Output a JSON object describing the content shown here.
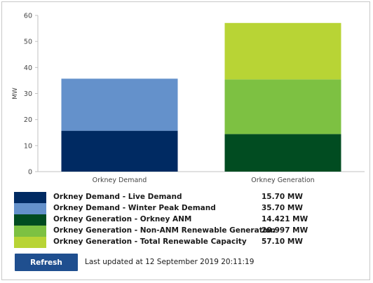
{
  "chart_data": {
    "type": "bar",
    "stacked": true,
    "categories": [
      "Orkney Demand",
      "Orkney Generation"
    ],
    "ylabel": "MW",
    "ylim": [
      0,
      60
    ],
    "yticks": [
      0,
      10,
      20,
      30,
      40,
      50,
      60
    ],
    "grid": false,
    "series": [
      {
        "name": "Orkney Demand - Live Demand",
        "category": "Orkney Demand",
        "bottom": 0,
        "top": 15.7,
        "color": "#002a62"
      },
      {
        "name": "Orkney Demand - Winter Peak Demand",
        "category": "Orkney Demand",
        "bottom": 15.7,
        "top": 35.7,
        "color": "#6491cb"
      },
      {
        "name": "Orkney Generation - Orkney ANM",
        "category": "Orkney Generation",
        "bottom": 0,
        "top": 14.421,
        "color": "#014c21"
      },
      {
        "name": "Orkney Generation - Non-ANM Renewable Generation",
        "category": "Orkney Generation",
        "bottom": 14.421,
        "top": 35.418,
        "color": "#7dc142"
      },
      {
        "name": "Orkney Generation - Total Renewable Capacity",
        "category": "Orkney Generation",
        "bottom": 35.418,
        "top": 57.1,
        "color": "#b8d435"
      }
    ]
  },
  "legend": [
    {
      "label": "Orkney Demand - Live Demand",
      "value": "15.70 MW",
      "color": "#002a62"
    },
    {
      "label": "Orkney Demand - Winter Peak Demand",
      "value": "35.70 MW",
      "color": "#6491cb"
    },
    {
      "label": "Orkney Generation - Orkney ANM",
      "value": "14.421 MW",
      "color": "#014c21"
    },
    {
      "label": "Orkney Generation - Non-ANM Renewable Generation",
      "value": "20.997 MW",
      "color": "#7dc142"
    },
    {
      "label": "Orkney Generation - Total Renewable Capacity",
      "value": "57.10 MW",
      "color": "#b8d435"
    }
  ],
  "controls": {
    "refresh_label": "Refresh",
    "last_updated": "Last updated at 12 September 2019 20:11:19",
    "button_color": "#1f4f8f"
  }
}
